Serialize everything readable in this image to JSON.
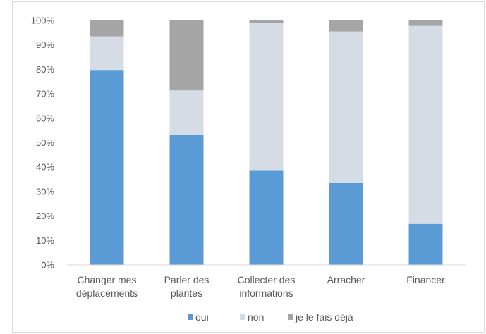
{
  "chart_data": {
    "type": "bar",
    "stacked": true,
    "percent": true,
    "categories": [
      [
        "Changer mes",
        "déplacements"
      ],
      [
        "Parler des",
        "plantes"
      ],
      [
        "Collecter des",
        "informations"
      ],
      [
        "Arracher"
      ],
      [
        "Financer"
      ]
    ],
    "series": [
      {
        "name": "oui",
        "color": "#5b9bd5",
        "values": [
          79.5,
          53.2,
          38.8,
          33.6,
          16.8
        ]
      },
      {
        "name": "non",
        "color": "#d6dce5",
        "values": [
          14.0,
          18.2,
          60.3,
          61.9,
          81.0
        ]
      },
      {
        "name": "je le fais déjà",
        "color": "#a5a5a5",
        "values": [
          6.5,
          28.6,
          0.9,
          4.5,
          2.2
        ]
      }
    ],
    "ylim": [
      0,
      100
    ],
    "yticks": [
      "0%",
      "10%",
      "20%",
      "30%",
      "40%",
      "50%",
      "60%",
      "70%",
      "80%",
      "90%",
      "100%"
    ],
    "grid": false,
    "legend": "bottom-center"
  }
}
